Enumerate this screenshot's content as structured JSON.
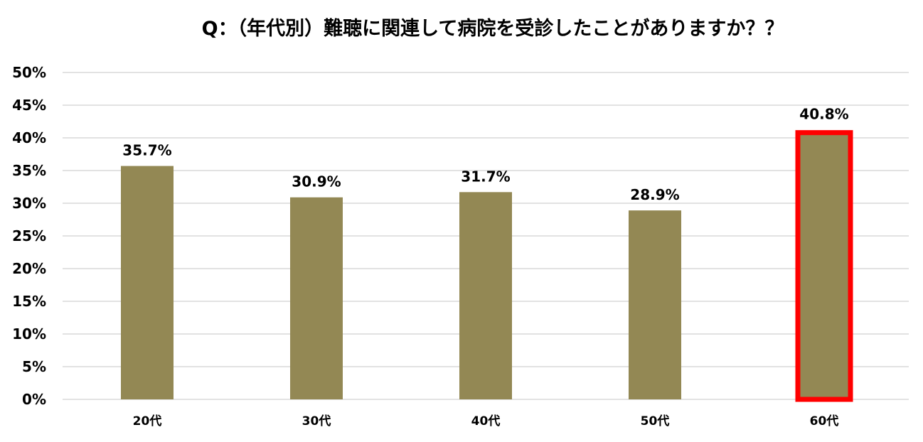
{
  "chart_data": {
    "type": "bar",
    "title": "Q：（年代別）難聴に関連して病院を受診したことがありますか？？",
    "categories": [
      "20代",
      "30代",
      "40代",
      "50代",
      "60代"
    ],
    "values": [
      35.7,
      30.9,
      31.7,
      28.9,
      40.8
    ],
    "data_labels": [
      "35.7%",
      "30.9%",
      "31.7%",
      "28.9%",
      "40.8%"
    ],
    "ylim": [
      0,
      50
    ],
    "yticks": [
      "0%",
      "5%",
      "10%",
      "15%",
      "20%",
      "25%",
      "30%",
      "35%",
      "40%",
      "45%",
      "50%"
    ],
    "xlabel": "",
    "ylabel": "",
    "grid": true,
    "legend": "none",
    "colors": {
      "bar": "#938854",
      "highlight_border": "#ff0000",
      "grid": "#d9d9d9"
    },
    "highlight_index": 4
  }
}
